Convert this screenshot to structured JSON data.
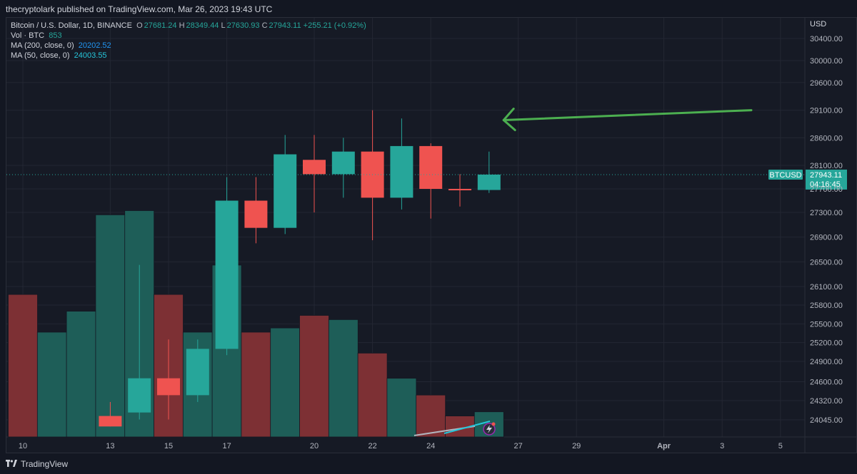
{
  "header": {
    "text": "thecryptolark published on TradingView.com, Mar 26, 2023 19:43 UTC"
  },
  "legend": {
    "symbol": "Bitcoin / U.S. Dollar, 1D, BINANCE",
    "o_label": "O",
    "o": "27681.24",
    "h_label": "H",
    "h": "28349.44",
    "l_label": "L",
    "l": "27630.93",
    "c_label": "C",
    "c": "27943.11",
    "change": "+255.21 (+0.92%)",
    "vol_label": "Vol · BTC",
    "vol": "853",
    "ma200_label": "MA (200, close, 0)",
    "ma200": "20202.52",
    "ma50_label": "MA (50, close, 0)",
    "ma50": "24003.55"
  },
  "footer": {
    "brand": "TradingView"
  },
  "colors": {
    "up": "#26a69a",
    "down": "#ef5350",
    "vol_up": "#1e5e58",
    "vol_down": "#7d3034",
    "arrow": "#4caf50"
  },
  "chart_data": {
    "type": "candlestick",
    "currency_label": "USD",
    "price_ticks": [
      "30400.00",
      "30000.00",
      "29600.00",
      "29100.00",
      "28600.00",
      "28100.00",
      "27700.00",
      "27300.00",
      "26900.00",
      "26500.00",
      "26100.00",
      "25800.00",
      "25500.00",
      "25200.00",
      "24900.00",
      "24600.00",
      "24320.00",
      "24045.00"
    ],
    "price_badge": {
      "symbol": "BTCUSD",
      "price": "27943.11",
      "countdown": "04:16:45"
    },
    "x_ticks": [
      {
        "label": "10",
        "day": 10
      },
      {
        "label": "13",
        "day": 13
      },
      {
        "label": "15",
        "day": 15
      },
      {
        "label": "17",
        "day": 17
      },
      {
        "label": "20",
        "day": 20
      },
      {
        "label": "22",
        "day": 22
      },
      {
        "label": "24",
        "day": 24
      },
      {
        "label": "27",
        "day": 27
      },
      {
        "label": "29",
        "day": 29
      },
      {
        "label": "Apr",
        "day": 32
      },
      {
        "label": "3",
        "day": 34
      },
      {
        "label": "5",
        "day": 36
      }
    ],
    "candles": [
      {
        "day": 13,
        "o": 24100,
        "h": 24300,
        "l": 23950,
        "c": 23950
      },
      {
        "day": 14,
        "o": 24150,
        "h": 26450,
        "l": 24050,
        "c": 24650
      },
      {
        "day": 15,
        "o": 24650,
        "h": 25250,
        "l": 24050,
        "c": 24400
      },
      {
        "day": 16,
        "o": 24400,
        "h": 25250,
        "l": 24300,
        "c": 25100
      },
      {
        "day": 17,
        "o": 25100,
        "h": 27900,
        "l": 25000,
        "c": 27500
      },
      {
        "day": 18,
        "o": 27500,
        "h": 27900,
        "l": 26800,
        "c": 27050
      },
      {
        "day": 19,
        "o": 27050,
        "h": 28650,
        "l": 26950,
        "c": 28300
      },
      {
        "day": 20,
        "o": 28200,
        "h": 28650,
        "l": 27300,
        "c": 27950
      },
      {
        "day": 21,
        "o": 27950,
        "h": 28600,
        "l": 27550,
        "c": 28350
      },
      {
        "day": 22,
        "o": 28350,
        "h": 29100,
        "l": 26850,
        "c": 27550
      },
      {
        "day": 23,
        "o": 27550,
        "h": 28950,
        "l": 27350,
        "c": 28450
      },
      {
        "day": 24,
        "o": 28450,
        "h": 28500,
        "l": 27200,
        "c": 27700
      },
      {
        "day": 25,
        "o": 27700,
        "h": 27950,
        "l": 27400,
        "c": 27680
      },
      {
        "day": 26,
        "o": 27681.24,
        "h": 28349.44,
        "l": 27630.93,
        "c": 27943.11
      }
    ],
    "volume_bars": [
      {
        "day": 10,
        "v": 0.34,
        "dir": "down"
      },
      {
        "day": 11,
        "v": 0.25,
        "dir": "up"
      },
      {
        "day": 12,
        "v": 0.3,
        "dir": "up"
      },
      {
        "day": 13,
        "v": 0.53,
        "dir": "up"
      },
      {
        "day": 14,
        "v": 0.54,
        "dir": "up"
      },
      {
        "day": 15,
        "v": 0.34,
        "dir": "down"
      },
      {
        "day": 16,
        "v": 0.25,
        "dir": "up"
      },
      {
        "day": 17,
        "v": 0.41,
        "dir": "up"
      },
      {
        "day": 18,
        "v": 0.25,
        "dir": "down"
      },
      {
        "day": 19,
        "v": 0.26,
        "dir": "up"
      },
      {
        "day": 20,
        "v": 0.29,
        "dir": "down"
      },
      {
        "day": 21,
        "v": 0.28,
        "dir": "up"
      },
      {
        "day": 22,
        "v": 0.2,
        "dir": "down"
      },
      {
        "day": 23,
        "v": 0.14,
        "dir": "up"
      },
      {
        "day": 24,
        "v": 0.1,
        "dir": "down"
      },
      {
        "day": 25,
        "v": 0.05,
        "dir": "down"
      },
      {
        "day": 26,
        "v": 0.06,
        "dir": "up"
      }
    ],
    "last_price": 27943.11,
    "annotation": {
      "type": "arrow",
      "from": {
        "day": 35.0,
        "price": 29100
      },
      "to": {
        "day": 26.5,
        "price": 28920
      }
    }
  }
}
